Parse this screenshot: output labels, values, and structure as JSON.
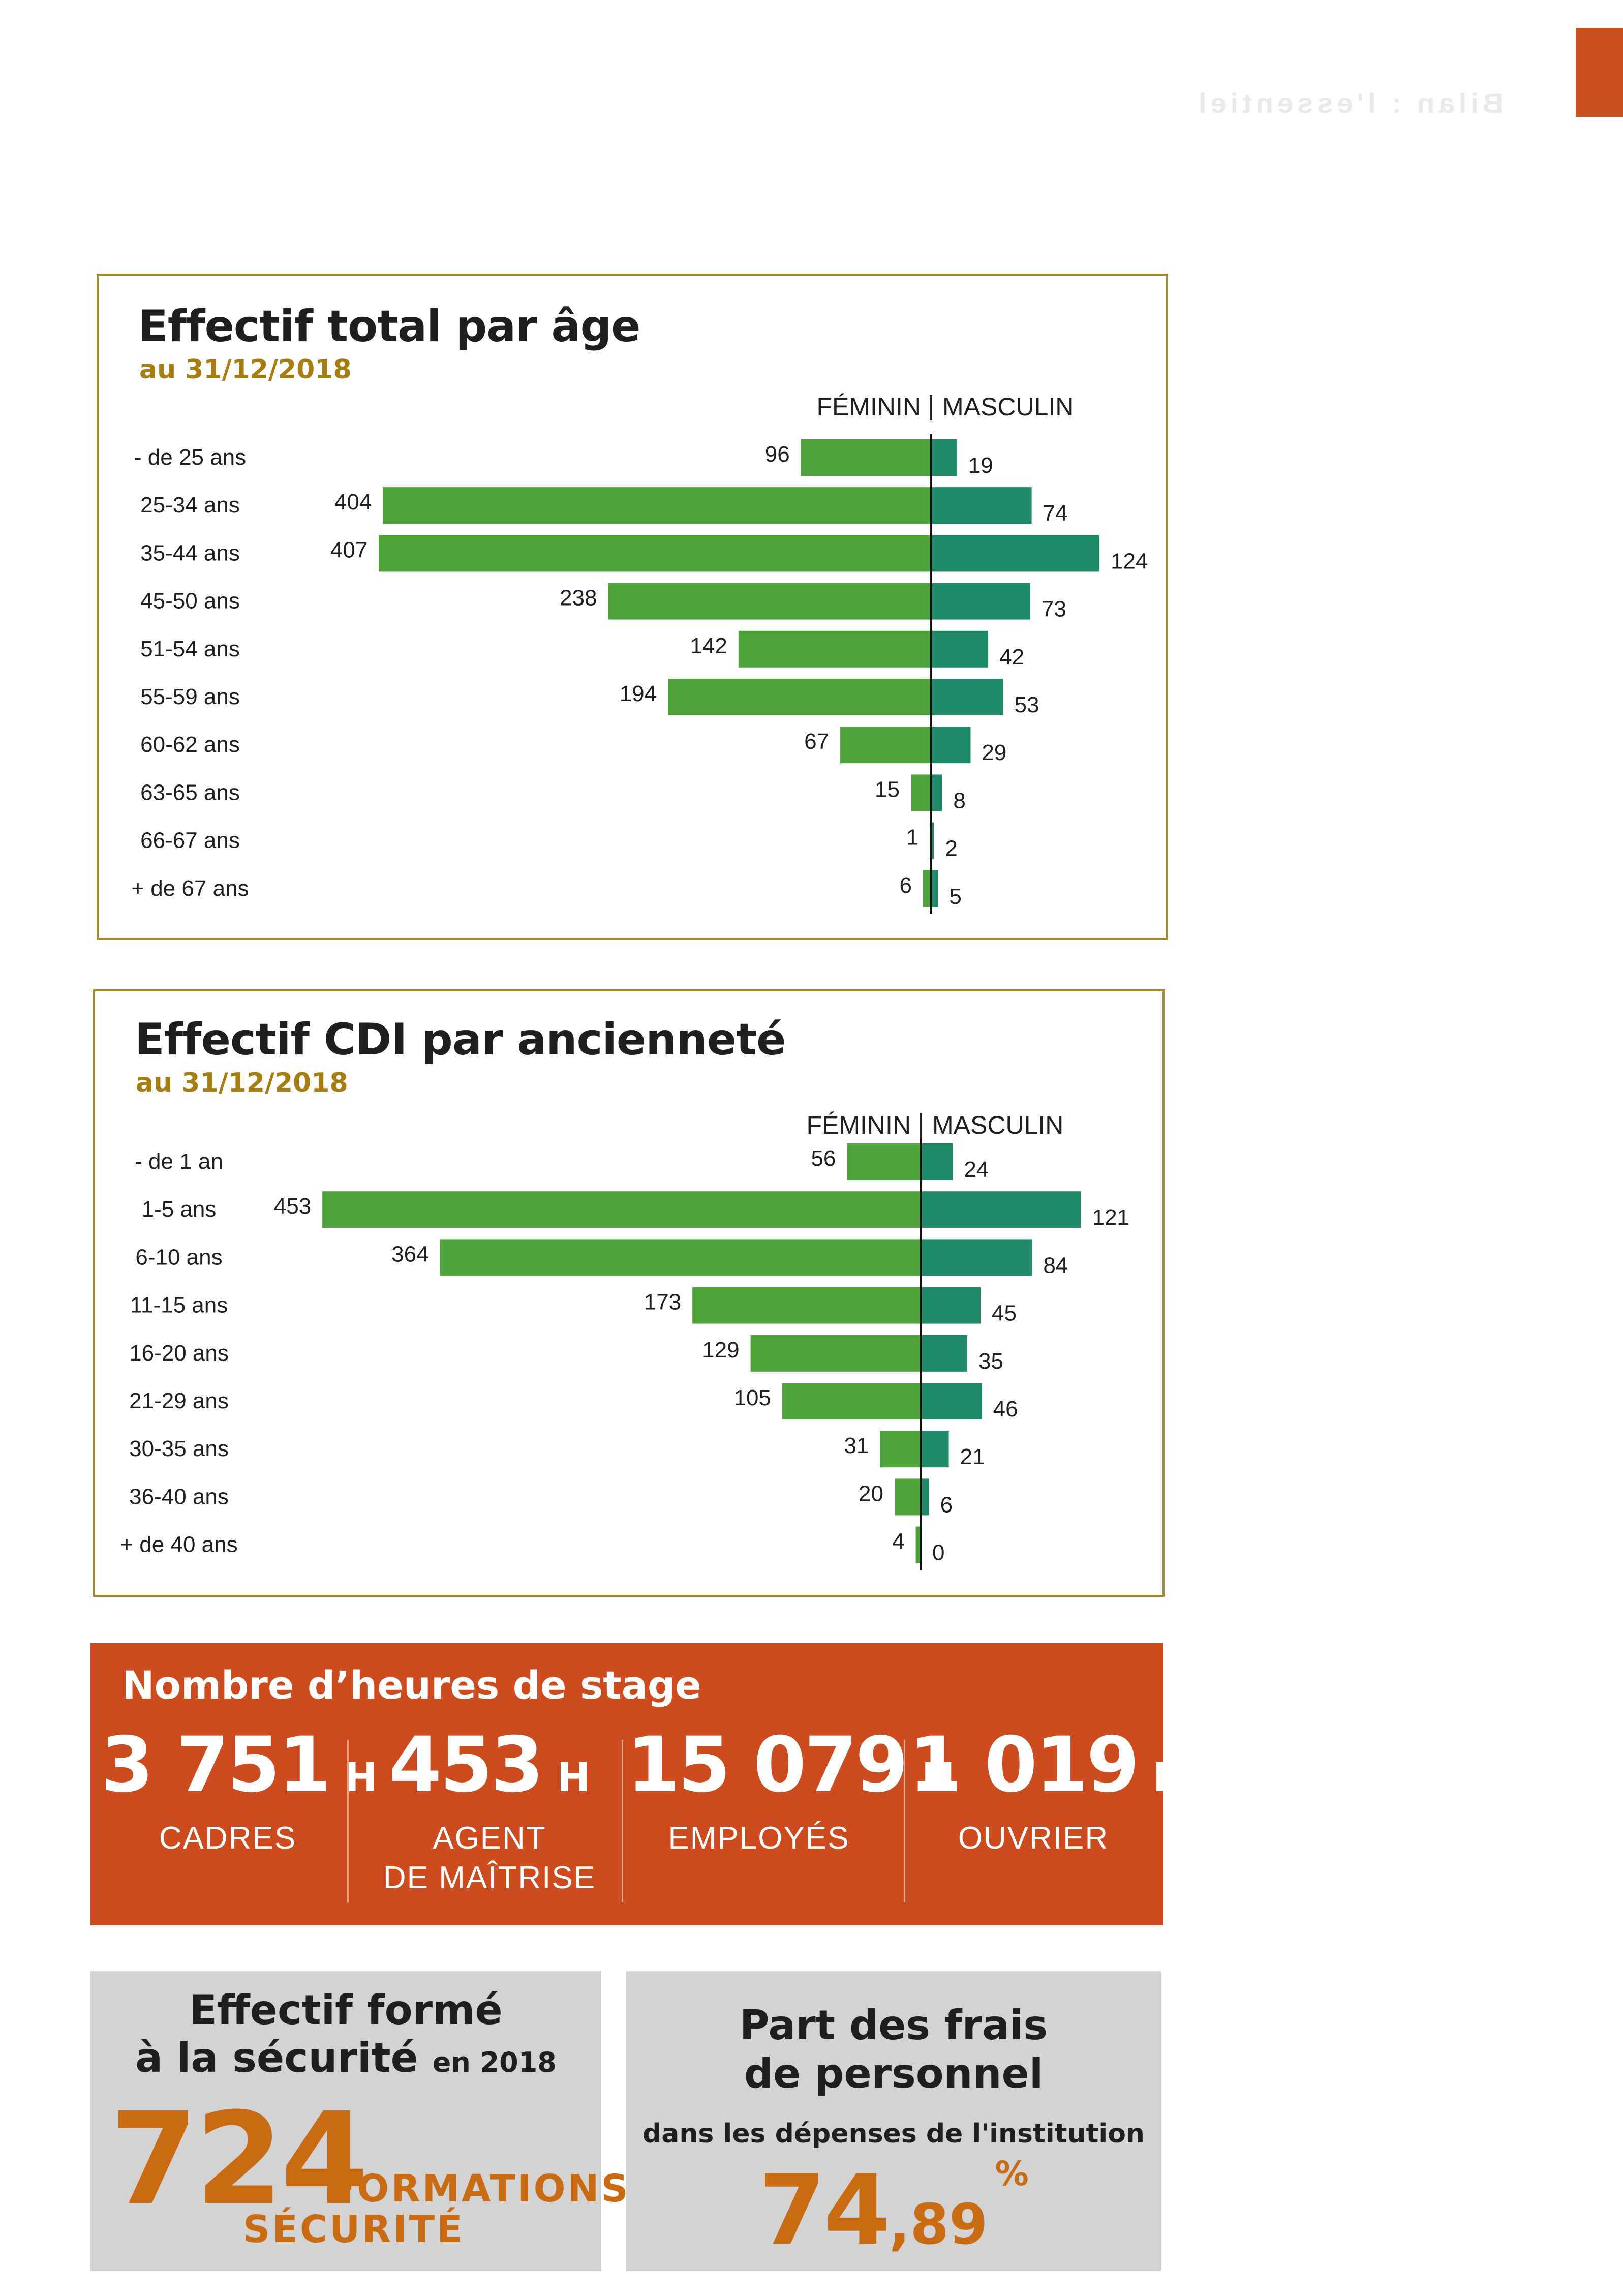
{
  "header": {
    "ghost_text": "Bilan : l'essentiel"
  },
  "colors": {
    "female_bar": "#4ea43a",
    "male_bar": "#1e8a6a",
    "frame": "#a6882e",
    "accent_orange": "#cc4c20",
    "value_orange": "#c86b12"
  },
  "age_chart": {
    "title": "Effectif total par âge",
    "subtitle": "au 31/12/2018",
    "female_label": "FÉMININ",
    "male_label": "MASCULIN"
  },
  "seniority_chart": {
    "title": "Effectif CDI par ancienneté",
    "subtitle": "au 31/12/2018",
    "female_label": "FÉMININ",
    "male_label": "MASCULIN"
  },
  "chart_data": [
    {
      "type": "bar",
      "orientation": "horizontal-pyramid",
      "categories": [
        "- de 25 ans",
        "25-34 ans",
        "35-44 ans",
        "45-50 ans",
        "51-54 ans",
        "55-59 ans",
        "60-62 ans",
        "63-65 ans",
        "66-67 ans",
        "+ de 67 ans"
      ],
      "series": [
        {
          "name": "FÉMININ",
          "values": [
            96,
            404,
            407,
            238,
            142,
            194,
            67,
            15,
            1,
            6
          ]
        },
        {
          "name": "MASCULIN",
          "values": [
            19,
            74,
            124,
            73,
            42,
            53,
            29,
            8,
            2,
            5
          ]
        }
      ],
      "title": "Effectif total par âge",
      "subtitle": "au 31/12/2018",
      "grid": false
    },
    {
      "type": "bar",
      "orientation": "horizontal-pyramid",
      "categories": [
        "- de 1 an",
        "1-5 ans",
        "6-10 ans",
        "11-15 ans",
        "16-20 ans",
        "21-29 ans",
        "30-35 ans",
        "36-40 ans",
        "+ de 40 ans"
      ],
      "series": [
        {
          "name": "FÉMININ",
          "values": [
            56,
            453,
            364,
            173,
            129,
            105,
            31,
            20,
            4
          ]
        },
        {
          "name": "MASCULIN",
          "values": [
            24,
            121,
            84,
            45,
            35,
            46,
            21,
            6,
            0
          ]
        }
      ],
      "title": "Effectif CDI par ancienneté",
      "subtitle": "au 31/12/2018",
      "grid": false
    }
  ],
  "hours": {
    "title": "Nombre d’heures de stage",
    "items": [
      {
        "value": "3 751",
        "unit": "H",
        "label_1": "CADRES",
        "label_2": ""
      },
      {
        "value": "453",
        "unit": "H",
        "label_1": "AGENT",
        "label_2": "DE MAÎTRISE"
      },
      {
        "value": "15 079",
        "unit": "H",
        "label_1": "EMPLOYÉS",
        "label_2": ""
      },
      {
        "value": "1 019",
        "unit": "H",
        "label_1": "OUVRIER",
        "label_2": ""
      }
    ]
  },
  "safety": {
    "title_line1": "Effectif formé",
    "title_line2": "à la sécurité",
    "title_suffix": "en 2018",
    "value": "724",
    "label_line1": "FORMATIONS",
    "label_line2": "SÉCURITÉ"
  },
  "costs": {
    "title_line1": "Part des frais",
    "title_line2": "de personnel",
    "subtitle": "dans les dépenses de l'institution",
    "value_int": "74",
    "value_dec": ",89",
    "unit": "%"
  }
}
